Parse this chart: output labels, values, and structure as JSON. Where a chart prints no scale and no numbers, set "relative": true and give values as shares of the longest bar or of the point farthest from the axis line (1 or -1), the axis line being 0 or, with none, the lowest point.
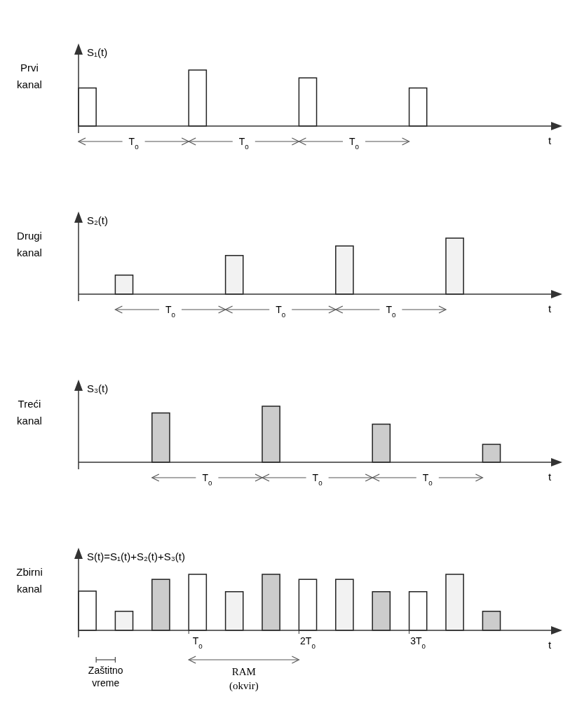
{
  "chart_data": [
    {
      "type": "bar",
      "title": "Prvi kanal",
      "ylabel": "S₁(t)",
      "xlabel": "t",
      "relative": true,
      "tick_labels": false,
      "categories": [
        null,
        null,
        null,
        null
      ],
      "values": [
        0.68,
        1,
        0.86,
        0.68
      ],
      "color": "#ffffff",
      "annotations": [
        "T$_{0}$",
        "T$_{0}$",
        "T$_{0}$"
      ]
    },
    {
      "type": "bar",
      "title": "Drugi kanal",
      "ylabel": "S₂(t)",
      "xlabel": "t",
      "relative": true,
      "tick_labels": false,
      "categories": [
        null,
        null,
        null,
        null
      ],
      "values": [
        0.34,
        0.69,
        0.86,
        1
      ],
      "color": "#f2f2f2",
      "annotations": [
        "T$_{0}$",
        "T$_{0}$",
        "T$_{0}$"
      ]
    },
    {
      "type": "bar",
      "title": "Treći kanal",
      "ylabel": "S₃(t)",
      "xlabel": "t",
      "relative": true,
      "tick_labels": false,
      "categories": [
        null,
        null,
        null,
        null
      ],
      "values": [
        0.88,
        1,
        0.68,
        0.32
      ],
      "color": "#cccccc",
      "annotations": [
        "T$_{0}$",
        "T$_{0}$",
        "T$_{0}$"
      ]
    },
    {
      "type": "bar",
      "title": "Zbirni kanal",
      "ylabel": "S(t)=S₁(t)+S₂(t)+S₃(t)",
      "xlabel": "t",
      "relative": true,
      "tick_labels": "x",
      "categories": [
        null,
        null,
        null,
        "T$_{0}$",
        null,
        null,
        "2T$_{0}$",
        null,
        null,
        "3T$_{0}$",
        null,
        null
      ],
      "values": [
        0.7,
        0.34,
        0.91,
        1,
        0.69,
        1,
        0.91,
        0.91,
        0.69,
        0.69,
        1,
        0.34
      ],
      "colors": [
        "#ffffff",
        "#f2f2f2",
        "#cccccc",
        "#ffffff",
        "#f2f2f2",
        "#cccccc",
        "#ffffff",
        "#f2f2f2",
        "#cccccc",
        "#ffffff",
        "#f2f2f2",
        "#cccccc"
      ],
      "annotations": [
        "Zaštitno vreme",
        "RAM (okvir)"
      ]
    }
  ]
}
